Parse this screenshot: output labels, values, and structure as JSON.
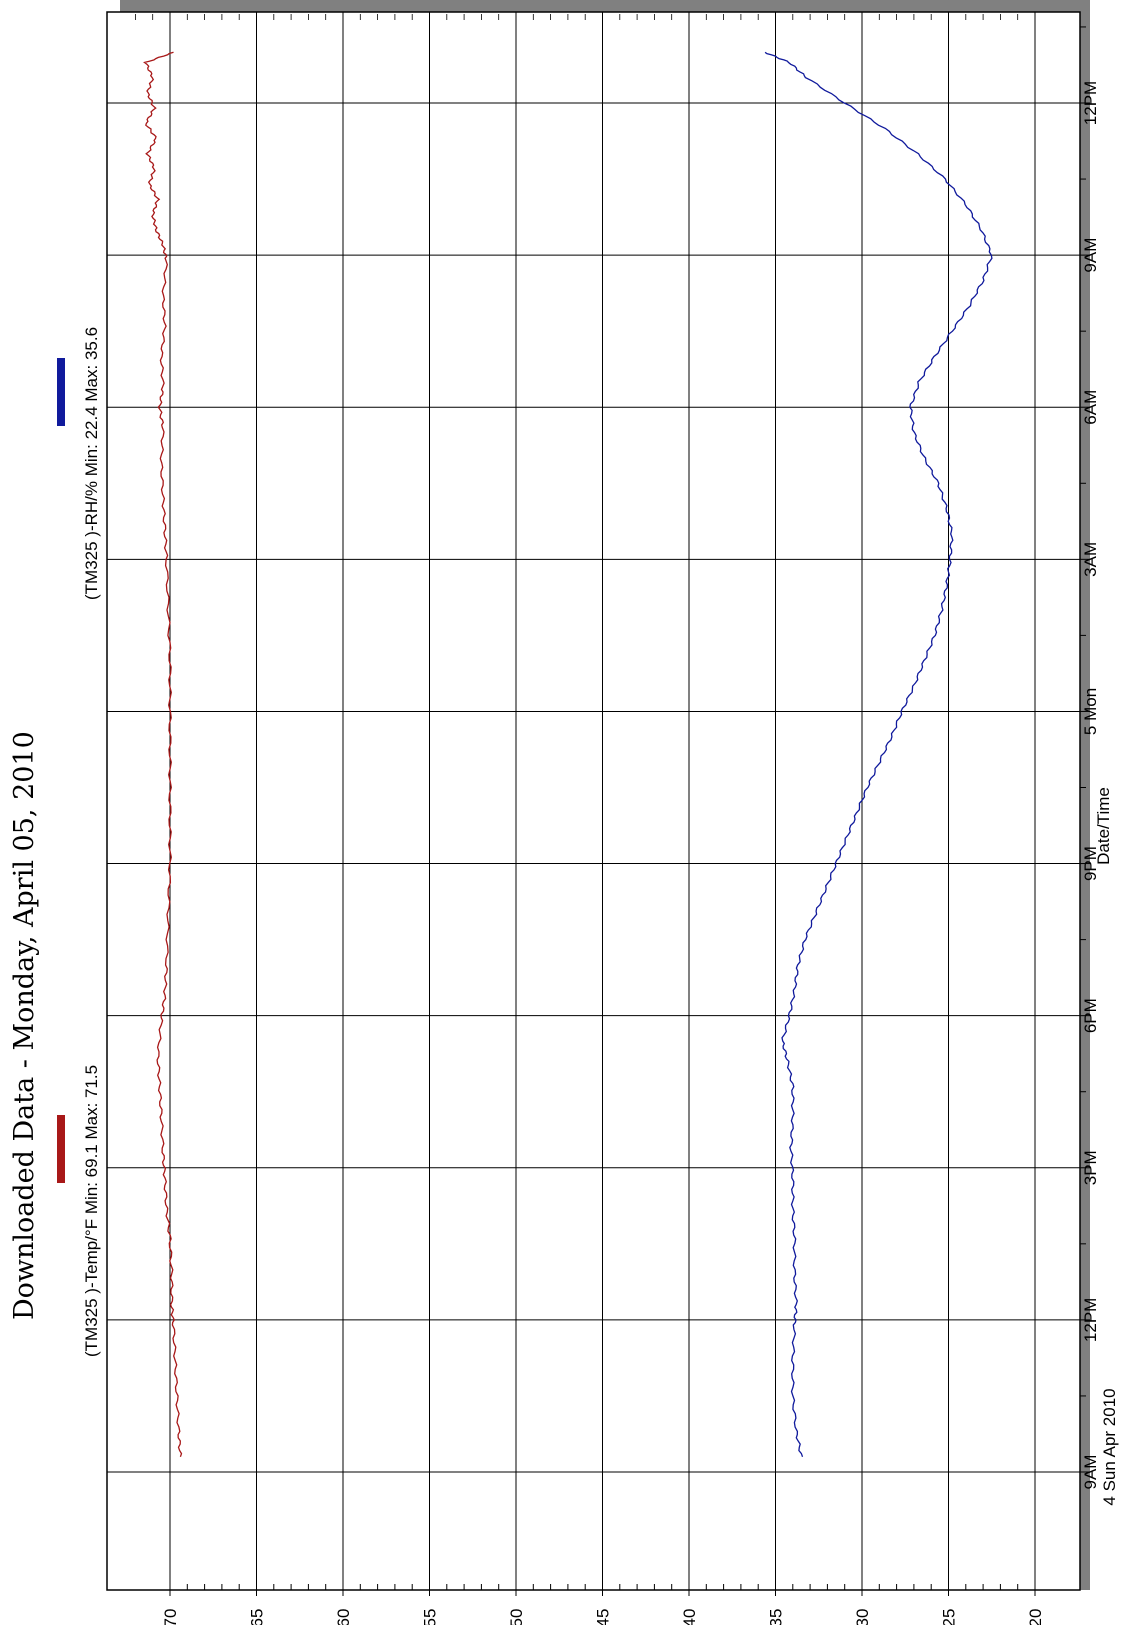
{
  "colors": {
    "temp": "#a81818",
    "rh": "#101a9c",
    "grid": "#000000",
    "frame_shadow": "#808080"
  },
  "chart_data": {
    "type": "line",
    "title": "Downloaded Data - Monday, April 05, 2010",
    "xlabel": "Date/Time",
    "ylabel": "",
    "orientation": "rotated-90-clockwise",
    "x_start_label": "9AM",
    "x_start_sublabel": "4 Sun Apr 2010",
    "x_ticks": [
      {
        "hour": 0,
        "label": "9AM",
        "sub": "4 Sun Apr 2010"
      },
      {
        "hour": 3,
        "label": "12PM",
        "sub": ""
      },
      {
        "hour": 6,
        "label": "3PM",
        "sub": ""
      },
      {
        "hour": 9,
        "label": "6PM",
        "sub": ""
      },
      {
        "hour": 12,
        "label": "9PM",
        "sub": ""
      },
      {
        "hour": 15,
        "label": "5 Mon",
        "sub": ""
      },
      {
        "hour": 18,
        "label": "3AM",
        "sub": ""
      },
      {
        "hour": 21,
        "label": "6AM",
        "sub": ""
      },
      {
        "hour": 24,
        "label": "9AM",
        "sub": ""
      },
      {
        "hour": 27,
        "label": "12PM",
        "sub": ""
      }
    ],
    "y_ticks": [
      70,
      65,
      60,
      55,
      50,
      45,
      40,
      35,
      30,
      25,
      20
    ],
    "ylim": [
      20,
      73
    ],
    "xlim": [
      0,
      28.5
    ],
    "grid": true,
    "series": [
      {
        "key": "temp",
        "legend": "(TM325   )-Temp/°F Min: 69.1 Max: 71.5",
        "x": [
          0.3,
          0.8,
          1.5,
          2.2,
          2.9,
          3.3,
          3.9,
          4.6,
          5.2,
          5.8,
          6.3,
          7.0,
          7.6,
          8.2,
          8.9,
          9.4,
          10.0,
          11.0,
          12.0,
          13.0,
          14.0,
          15.0,
          16.0,
          17.0,
          18.0,
          18.6,
          19.2,
          19.9,
          20.6,
          21.0,
          21.4,
          22.0,
          22.6,
          23.2,
          23.9,
          24.2,
          24.5,
          24.8,
          25.1,
          25.4,
          25.7,
          26.0,
          26.3,
          26.6,
          26.9,
          27.2,
          27.5,
          27.8,
          28.0
        ],
        "y": [
          69.4,
          69.5,
          69.6,
          69.7,
          69.8,
          69.9,
          69.9,
          70.0,
          70.2,
          70.3,
          70.4,
          70.5,
          70.6,
          70.7,
          70.5,
          70.3,
          70.2,
          70.1,
          70.0,
          70.0,
          70.0,
          70.0,
          70.0,
          70.1,
          70.2,
          70.3,
          70.4,
          70.5,
          70.4,
          70.6,
          70.4,
          70.5,
          70.3,
          70.4,
          70.2,
          70.4,
          70.8,
          71.0,
          70.7,
          71.2,
          70.9,
          71.3,
          70.8,
          71.4,
          70.9,
          71.3,
          71.0,
          71.4,
          69.8
        ]
      },
      {
        "key": "rh",
        "legend": "(TM325   )-RH/% Min: 22.4 Max: 35.6",
        "x": [
          0.3,
          0.8,
          1.5,
          2.2,
          2.9,
          3.3,
          3.9,
          4.6,
          5.2,
          5.8,
          6.4,
          7.0,
          7.6,
          8.1,
          8.5,
          9.0,
          9.5,
          10.0,
          10.5,
          11.0,
          11.5,
          12.0,
          12.5,
          13.0,
          13.5,
          14.0,
          14.5,
          15.0,
          15.5,
          16.0,
          16.5,
          17.0,
          17.5,
          18.0,
          18.5,
          19.0,
          19.5,
          20.0,
          20.5,
          21.0,
          21.5,
          22.0,
          22.5,
          23.0,
          23.5,
          24.0,
          24.5,
          25.0,
          25.5,
          26.0,
          26.5,
          27.0,
          27.5,
          27.8,
          28.0
        ],
        "y": [
          33.5,
          33.8,
          34.0,
          34.0,
          33.9,
          33.8,
          33.9,
          33.9,
          34.0,
          34.0,
          34.1,
          34.0,
          34.0,
          34.3,
          34.6,
          34.2,
          33.9,
          33.7,
          33.3,
          32.7,
          32.1,
          31.5,
          30.9,
          30.3,
          29.7,
          29.0,
          28.3,
          27.7,
          27.0,
          26.4,
          25.8,
          25.4,
          25.1,
          24.9,
          24.8,
          25.1,
          25.6,
          26.4,
          27.0,
          27.2,
          26.7,
          25.8,
          24.8,
          23.8,
          23.0,
          22.5,
          23.1,
          24.0,
          25.2,
          26.8,
          28.7,
          31.0,
          33.2,
          34.2,
          35.6
        ]
      }
    ]
  }
}
